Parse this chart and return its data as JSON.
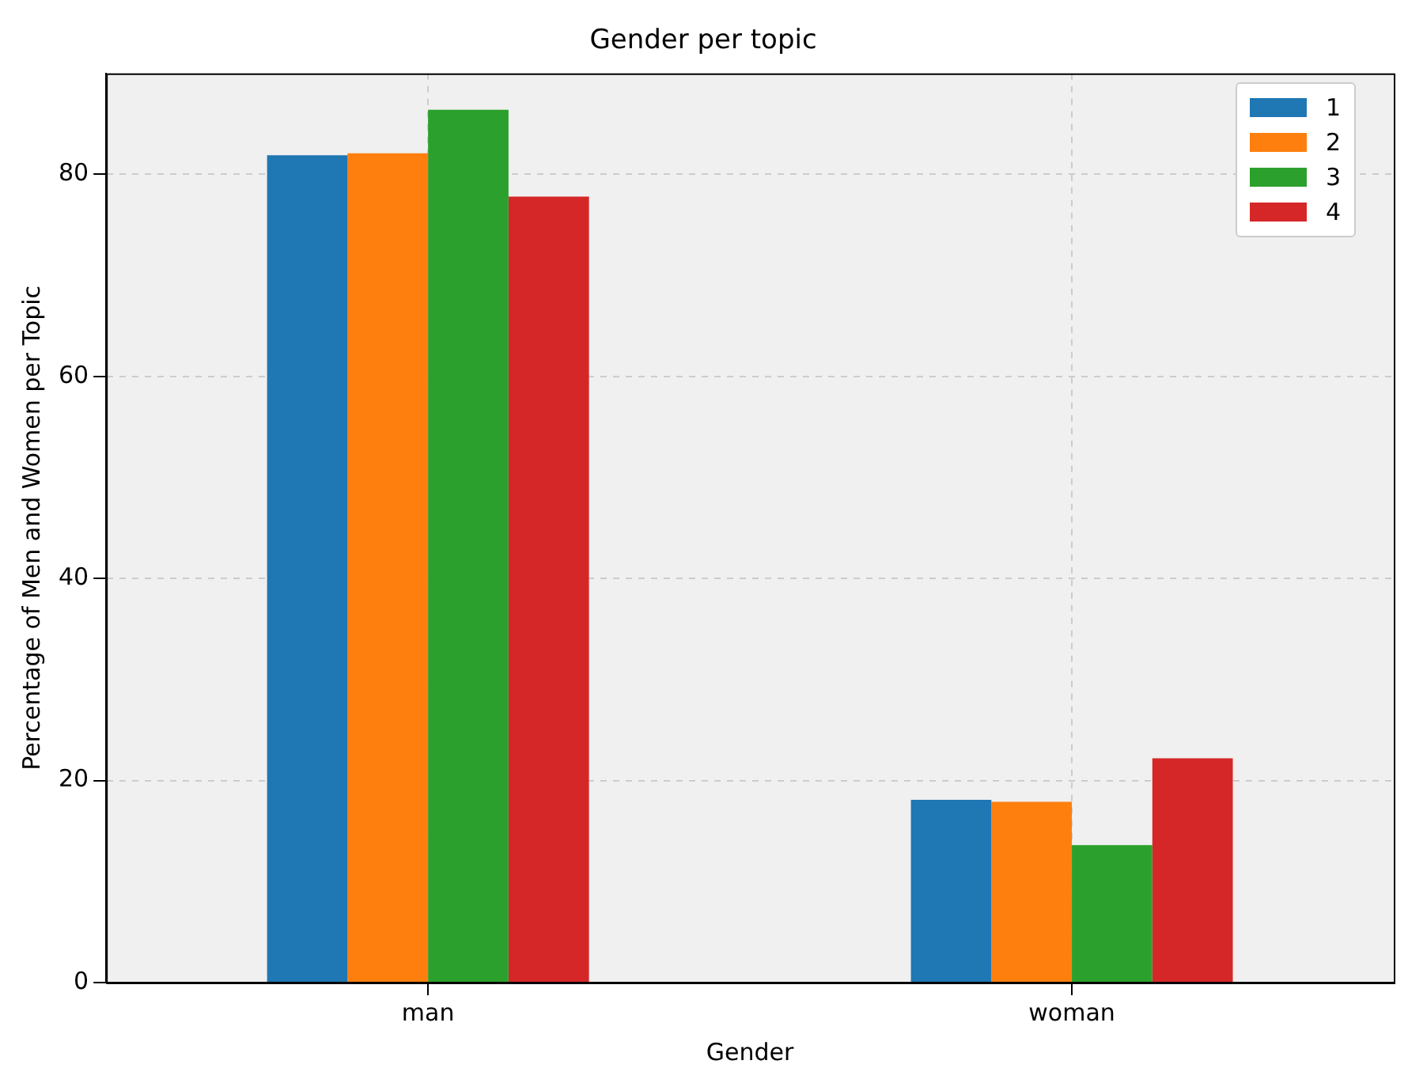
{
  "chart_data": {
    "type": "bar",
    "title": "Gender per topic",
    "xlabel": "Gender",
    "ylabel": "Percentage of Men and Women per Topic",
    "categories": [
      "man",
      "woman"
    ],
    "series": [
      {
        "name": "1",
        "color": "#1f77b4",
        "values": [
          81.9,
          18.1
        ]
      },
      {
        "name": "2",
        "color": "#ff7f0e",
        "values": [
          82.1,
          17.9
        ]
      },
      {
        "name": "3",
        "color": "#2ca02c",
        "values": [
          86.4,
          13.6
        ]
      },
      {
        "name": "4",
        "color": "#d62728",
        "values": [
          77.8,
          22.2
        ]
      }
    ],
    "ylim": [
      0,
      90
    ],
    "yticks": [
      0,
      20,
      40,
      60,
      80
    ],
    "grid": true,
    "legend": "top right"
  }
}
